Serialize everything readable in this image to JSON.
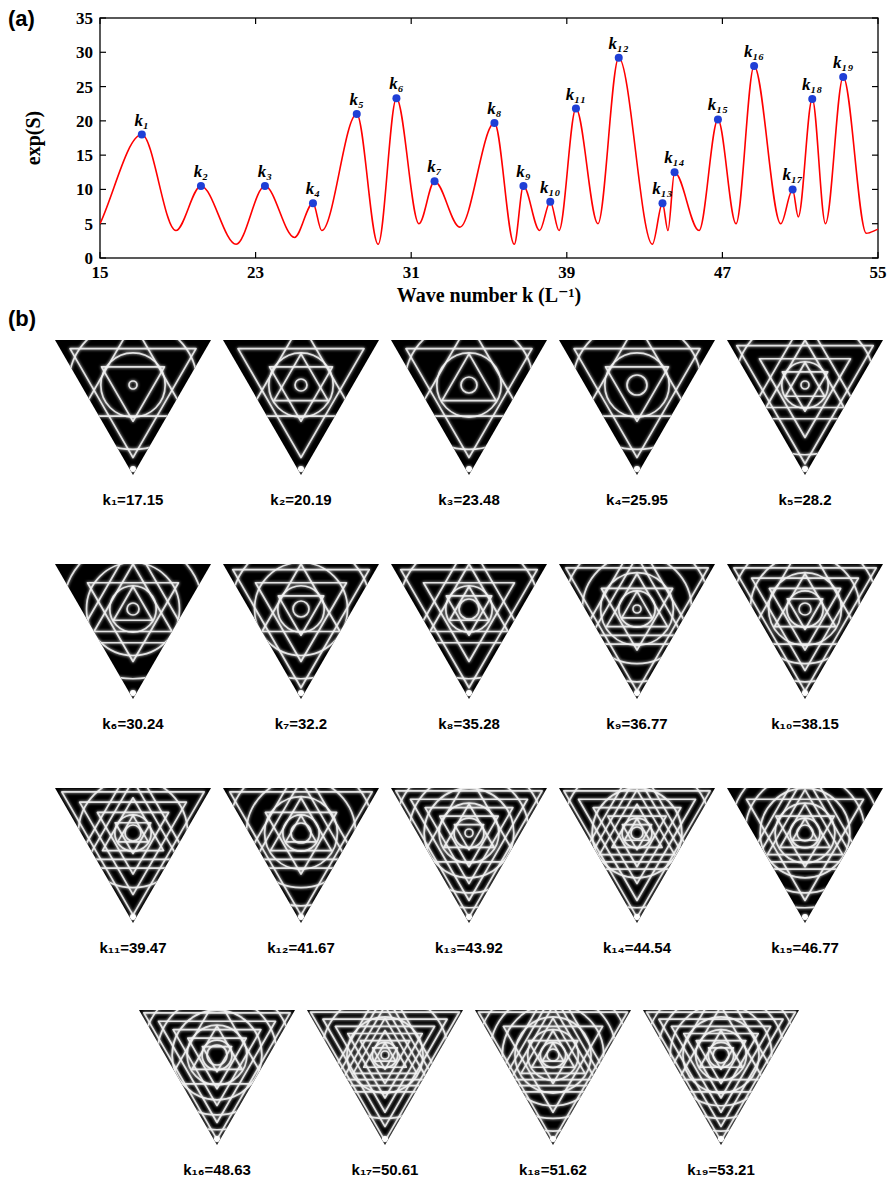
{
  "chart_data": {
    "type": "line",
    "panel_label": "(a)",
    "xlabel": "Wave number k (L⁻¹)",
    "ylabel": "exp(S)",
    "xlim": [
      15,
      55
    ],
    "xticks": [
      15,
      23,
      31,
      39,
      47,
      55
    ],
    "ylim": [
      0,
      35
    ],
    "yticks": [
      0,
      5,
      10,
      15,
      20,
      25,
      30,
      35
    ],
    "grid": false,
    "series": [
      {
        "type": "line",
        "color": "#ff0000",
        "line_style": "solid",
        "x": [
          15,
          17.15,
          18.9,
          20.19,
          22,
          23.48,
          25,
          25.95,
          26.4,
          28.2,
          29.3,
          30.24,
          31.4,
          32.2,
          33.5,
          35.28,
          36.3,
          36.77,
          37.6,
          38.15,
          38.6,
          39.47,
          40.6,
          41.67,
          43.4,
          43.92,
          44.2,
          44.54,
          45.8,
          46.77,
          47.7,
          48.63,
          50.0,
          50.61,
          50.9,
          51.62,
          52.3,
          53.21,
          54.4,
          55
        ],
        "values": [
          5,
          18,
          4,
          10.5,
          2,
          10.5,
          3,
          8,
          4,
          21,
          2,
          23.3,
          5,
          11.2,
          4.5,
          19.7,
          2,
          10.5,
          4,
          8.2,
          4,
          21.8,
          5,
          29.2,
          2,
          8,
          4,
          12.5,
          4,
          20.2,
          5,
          28,
          5,
          10,
          6,
          23.2,
          5,
          26.4,
          3.6,
          4.2
        ]
      },
      {
        "type": "scatter",
        "color": "#1f3fd6",
        "marker": "circle",
        "x": [
          17.15,
          20.19,
          23.48,
          25.95,
          28.2,
          30.24,
          32.2,
          35.28,
          36.77,
          38.15,
          39.47,
          41.67,
          43.92,
          44.54,
          46.77,
          48.63,
          50.61,
          51.62,
          53.21
        ],
        "values": [
          18,
          10.5,
          10.5,
          8,
          21,
          23.3,
          11.2,
          19.7,
          10.5,
          8.2,
          21.8,
          29.2,
          8,
          12.5,
          20.2,
          28,
          10,
          23.2,
          26.4
        ],
        "labels": [
          "k₁",
          "k₂",
          "k₃",
          "k₄",
          "k₅",
          "k₆",
          "k₇",
          "k₈",
          "k₉",
          "k₁₀",
          "k₁₁",
          "k₁₂",
          "k₁₃",
          "k₁₄",
          "k₁₅",
          "k₁₆",
          "k₁₇",
          "k₁₈",
          "k₁₉"
        ]
      }
    ]
  },
  "panel_b": {
    "panel_label": "(b)",
    "images": [
      {
        "label": "k₁=17.15"
      },
      {
        "label": "k₂=20.19"
      },
      {
        "label": "k₃=23.48"
      },
      {
        "label": "k₄=25.95"
      },
      {
        "label": "k₅=28.2"
      },
      {
        "label": "k₆=30.24"
      },
      {
        "label": "k₇=32.2"
      },
      {
        "label": "k₈=35.28"
      },
      {
        "label": "k₉=36.77"
      },
      {
        "label": "k₁₀=38.15"
      },
      {
        "label": "k₁₁=39.47"
      },
      {
        "label": "k₁₂=41.67"
      },
      {
        "label": "k₁₃=43.92"
      },
      {
        "label": "k₁₄=44.54"
      },
      {
        "label": "k₁₅=46.77"
      },
      {
        "label": "k₁₆=48.63"
      },
      {
        "label": "k₁₇=50.61"
      },
      {
        "label": "k₁₈=51.62"
      },
      {
        "label": "k₁₉=53.21"
      }
    ]
  }
}
